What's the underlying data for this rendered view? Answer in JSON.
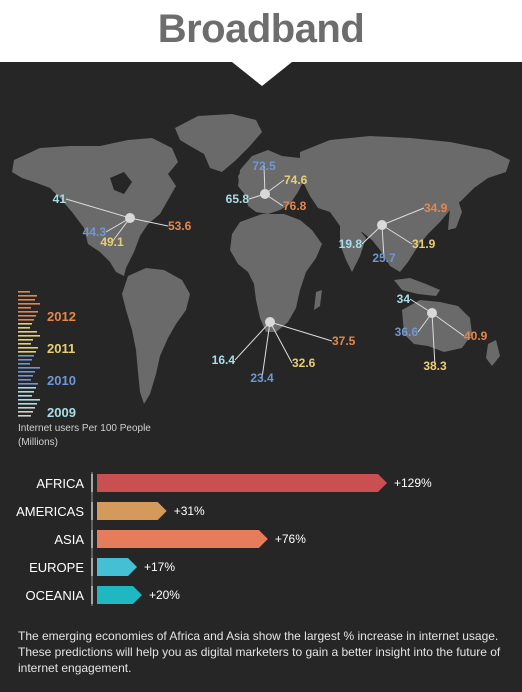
{
  "header": {
    "title": "Broadband"
  },
  "colors": {
    "c2012": "#e5874c",
    "c2011": "#e9cf73",
    "c2010": "#6f97d5",
    "c2009": "#a9dee8",
    "map": "#6a6a6a",
    "background": "#262626"
  },
  "map_chart": {
    "legend": {
      "title_line1": "Internet users Per 100 People",
      "title_line2": "(Millions)",
      "years": [
        "2012",
        "2011",
        "2010",
        "2009"
      ]
    },
    "regions": [
      {
        "name": "americas",
        "values": {
          "2012": "53.6",
          "2011": "49.1",
          "2010": "44.3",
          "2009": "41"
        }
      },
      {
        "name": "europe",
        "values": {
          "2012": "76.8",
          "2011": "74.6",
          "2010": "72.5",
          "2009": "65.8"
        }
      },
      {
        "name": "asia",
        "values": {
          "2012": "34.9",
          "2011": "31.9",
          "2010": "25.7",
          "2009": "19.8"
        }
      },
      {
        "name": "africa",
        "values": {
          "2012": "37.5",
          "2011": "32.6",
          "2010": "23.4",
          "2009": "16.4"
        }
      },
      {
        "name": "oceania",
        "values": {
          "2012": "40.9",
          "2011": "38.3",
          "2010": "36.6",
          "2009": "34"
        }
      }
    ]
  },
  "chart_data": {
    "type": "bar",
    "orientation": "horizontal",
    "categories": [
      "AFRICA",
      "AMERICAS",
      "ASIA",
      "EUROPE",
      "OCEANIA"
    ],
    "values": [
      129,
      31,
      76,
      17,
      20
    ],
    "value_labels": [
      "+129%",
      "+31%",
      "+76%",
      "+17%",
      "+20%"
    ],
    "colors": [
      "#c94f51",
      "#d49a5c",
      "#e77c5c",
      "#45bfd4",
      "#1fb8c0"
    ]
  },
  "footer": {
    "text": "The emerging economies of Africa and Asia show the largest % increase in internet usage. These predictions will help you as digital marketers to gain a better insight into the future of internet engagement."
  }
}
